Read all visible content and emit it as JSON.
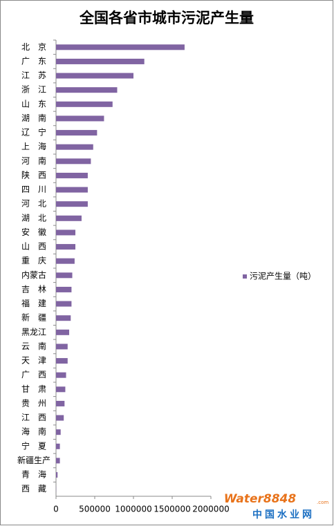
{
  "chart_data": {
    "type": "bar",
    "orientation": "horizontal",
    "title": "全国各省市城市污泥产生量",
    "categories": [
      "北　京",
      "广　东",
      "江　苏",
      "浙　江",
      "山　东",
      "湖　南",
      "辽　宁",
      "上　海",
      "河　南",
      "陕　西",
      "四　川",
      "河　北",
      "湖　北",
      "安　徽",
      "山　西",
      "重　庆",
      "内蒙古",
      "吉　林",
      "福　建",
      "新　疆",
      "黑龙江",
      "云　南",
      "天　津",
      "广　西",
      "甘　肃",
      "贵　州",
      "江　西",
      "海　南",
      "宁　夏",
      "新疆生产",
      "青　海",
      "西　藏"
    ],
    "series": [
      {
        "name": "污泥产生量（吨）",
        "color": "#8064a2",
        "values": [
          1660000,
          1140000,
          1000000,
          790000,
          730000,
          620000,
          530000,
          480000,
          450000,
          410000,
          410000,
          410000,
          330000,
          250000,
          250000,
          240000,
          210000,
          200000,
          200000,
          190000,
          170000,
          150000,
          150000,
          130000,
          120000,
          110000,
          100000,
          60000,
          50000,
          50000,
          20000,
          2000
        ]
      }
    ],
    "xlim": [
      0,
      2000000
    ],
    "xticks": [
      0,
      500000,
      1000000,
      1500000,
      2000000
    ],
    "legend": "right",
    "watermark": {
      "brand": "Water8848",
      "domain": ".com",
      "site": "中国水业网"
    }
  }
}
